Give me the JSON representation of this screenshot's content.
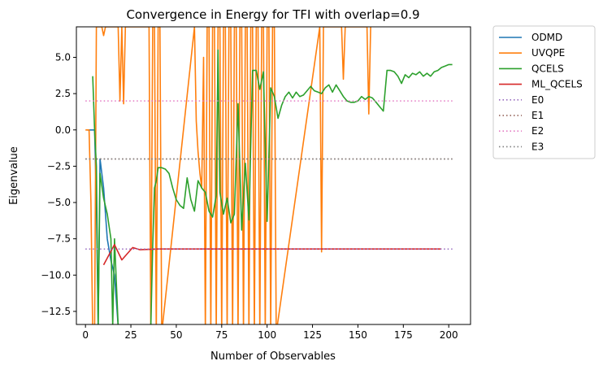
{
  "chart_data": {
    "type": "line",
    "title": "Convergence in Energy for TFI with overlap=0.9",
    "xlabel": "Number of Observables",
    "ylabel": "Eigenvalue",
    "xlim": [
      -5,
      212
    ],
    "ylim": [
      -13.4,
      7.1
    ],
    "xticks": [
      0,
      25,
      50,
      75,
      100,
      125,
      150,
      175,
      200
    ],
    "yticks": [
      -12.5,
      -10.0,
      -7.5,
      -5.0,
      -2.5,
      0.0,
      2.5,
      5.0
    ],
    "xtick_labels": [
      "0",
      "25",
      "50",
      "75",
      "100",
      "125",
      "150",
      "175",
      "200"
    ],
    "ytick_labels": [
      "−12.5",
      "−10.0",
      "−7.5",
      "−5.0",
      "−2.5",
      "0.0",
      "2.5",
      "5.0"
    ],
    "grid": false,
    "legend_position": "outside-right-top",
    "series": [
      {
        "name": "ODMD",
        "color": "#1f77b4",
        "style": "solid",
        "x": [
          1,
          3,
          5,
          6,
          7,
          8,
          10,
          12,
          14,
          16,
          18
        ],
        "y": [
          0.0,
          0.0,
          0.0,
          -5,
          -13.5,
          -2,
          -4,
          -7.5,
          -9,
          -10,
          -13.5
        ]
      },
      {
        "name": "UVQPE",
        "color": "#ff7f0e",
        "style": "solid",
        "x": [
          0,
          2,
          3,
          4,
          5,
          6,
          7,
          8,
          9,
          10,
          11,
          12,
          13,
          14,
          15,
          16,
          17,
          18,
          19,
          20,
          21,
          22,
          23,
          35,
          36,
          37,
          38,
          39,
          40,
          41,
          42,
          60,
          61,
          62,
          63,
          64,
          65,
          66,
          67,
          68,
          69,
          70,
          71,
          72,
          73,
          74,
          75,
          76,
          77,
          78,
          79,
          80,
          81,
          82,
          83,
          84,
          85,
          86,
          87,
          88,
          89,
          90,
          91,
          92,
          93,
          94,
          95,
          96,
          97,
          98,
          99,
          100,
          101,
          102,
          103,
          104,
          105,
          129,
          130,
          131,
          141,
          142,
          143,
          155,
          156,
          157
        ],
        "y": [
          0.0,
          0.0,
          -5,
          -14,
          -14,
          7.1,
          7.1,
          7.1,
          7.1,
          6.5,
          7.1,
          7.1,
          7.1,
          7.1,
          7.1,
          7.1,
          7.1,
          7.1,
          2.0,
          7.1,
          1.8,
          7.1,
          7.1,
          7.1,
          -14,
          7.1,
          7.1,
          -14,
          7.1,
          7.1,
          -14,
          7.1,
          0.6,
          -1.5,
          -3,
          -4,
          5.0,
          -14,
          7.1,
          7.1,
          -14,
          7.1,
          7.1,
          -14,
          7.1,
          7.1,
          -14,
          7.1,
          7.1,
          -14,
          7.1,
          7.1,
          -14,
          7.1,
          7.1,
          -14,
          7.1,
          7.1,
          -14,
          7.1,
          7.1,
          -14,
          7.1,
          7.1,
          -14,
          7.1,
          7.1,
          -14,
          7.1,
          7.1,
          -14,
          7.1,
          7.1,
          -14,
          7.1,
          7.1,
          -14,
          7.1,
          -8.4,
          7.1,
          7.1,
          3.5,
          7.1,
          7.1,
          1.1,
          7.1
        ]
      },
      {
        "name": "QCELS",
        "color": "#2ca02c",
        "style": "solid",
        "x": [
          4,
          5,
          6,
          7,
          8,
          10,
          12,
          14,
          15,
          16,
          18,
          20,
          22,
          24,
          26,
          28,
          30,
          32,
          34,
          35,
          36,
          37,
          38,
          39,
          40,
          42,
          44,
          46,
          48,
          50,
          52,
          54,
          56,
          58,
          60,
          62,
          64,
          66,
          68,
          70,
          72,
          73,
          74,
          76,
          78,
          80,
          82,
          84,
          86,
          88,
          90,
          92,
          94,
          96,
          98,
          100,
          102,
          104,
          106,
          108,
          110,
          112,
          114,
          116,
          118,
          120,
          122,
          124,
          126,
          128,
          130,
          132,
          134,
          136,
          138,
          140,
          142,
          144,
          146,
          148,
          150,
          152,
          154,
          156,
          158,
          160,
          162,
          164,
          166,
          168,
          170,
          172,
          174,
          176,
          178,
          180,
          182,
          184,
          186,
          188,
          190,
          192,
          194,
          196,
          198,
          200,
          202
        ],
        "y": [
          3.7,
          0.0,
          -2.5,
          -13.5,
          -3.0,
          -4.7,
          -5.8,
          -7.5,
          -13.5,
          -7.5,
          -13.5,
          -13.5,
          -13.5,
          -13.5,
          -13.5,
          -13.5,
          -13.5,
          -13.5,
          -13.5,
          -13.5,
          -13.5,
          -8.0,
          -4.0,
          -3.5,
          -2.6,
          -2.6,
          -2.7,
          -3.0,
          -4.0,
          -4.8,
          -5.2,
          -5.4,
          -3.3,
          -4.8,
          -5.6,
          -3.5,
          -4.0,
          -4.3,
          -5.6,
          -6.0,
          -4.5,
          5.5,
          -4.3,
          -5.8,
          -4.7,
          -6.4,
          -5.8,
          1.8,
          -6.9,
          -2.3,
          -6.2,
          4.1,
          4.1,
          2.8,
          4.0,
          -6.3,
          2.9,
          2.3,
          0.8,
          1.7,
          2.3,
          2.6,
          2.2,
          2.6,
          2.3,
          2.4,
          2.7,
          3.0,
          2.7,
          2.6,
          2.5,
          2.9,
          3.1,
          2.6,
          3.1,
          2.7,
          2.3,
          2.0,
          1.9,
          1.9,
          2.0,
          2.3,
          2.1,
          2.3,
          2.2,
          1.9,
          1.6,
          1.3,
          4.1,
          4.1,
          4.0,
          3.7,
          3.2,
          3.8,
          3.6,
          3.9,
          3.8,
          4.0,
          3.7,
          3.9,
          3.7,
          4.0,
          4.1,
          4.3,
          4.4,
          4.5,
          4.5
        ]
      },
      {
        "name": "ML_QCELS",
        "color": "#d62728",
        "style": "solid",
        "x": [
          10,
          16,
          20,
          26,
          30,
          40,
          60,
          80,
          100,
          120,
          140,
          160,
          180,
          196
        ],
        "y": [
          -9.3,
          -7.9,
          -8.95,
          -8.1,
          -8.25,
          -8.2,
          -8.2,
          -8.2,
          -8.2,
          -8.2,
          -8.2,
          -8.2,
          -8.2,
          -8.2
        ]
      },
      {
        "name": "E0",
        "color": "#9467bd",
        "style": "dotted",
        "x": [
          0,
          202
        ],
        "y": [
          -8.2,
          -8.2
        ]
      },
      {
        "name": "E1",
        "color": "#8c564b",
        "style": "dotted",
        "x": [
          0,
          202
        ],
        "y": [
          -2.0,
          -2.0
        ]
      },
      {
        "name": "E2",
        "color": "#e377c2",
        "style": "dotted",
        "x": [
          0,
          202
        ],
        "y": [
          2.0,
          2.0
        ]
      },
      {
        "name": "E3",
        "color": "#7f7f7f",
        "style": "dotted",
        "x": [
          0,
          202
        ],
        "y": [
          -2.0,
          -2.0
        ]
      }
    ]
  }
}
